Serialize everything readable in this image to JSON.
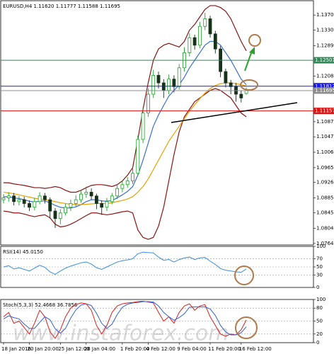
{
  "chart_data": [
    {
      "type": "candlestick",
      "title": "EURUSD,H4  1.11620 1.11777 1.11588 1.11695",
      "categories": [
        "18 Jan 2016",
        null,
        null,
        null,
        null,
        "20 Jan 20:00",
        null,
        null,
        null,
        null,
        null,
        "25 Jan 12:00",
        null,
        null,
        null,
        null,
        "28 Jan 04:00",
        null,
        null,
        null,
        null,
        null,
        null,
        "1 Feb 20:00",
        null,
        null,
        null,
        null,
        "4 Feb 12:00",
        null,
        null,
        null,
        null,
        null,
        "9 Feb 04:00",
        null,
        null,
        null,
        null,
        null,
        "11 Feb 20:00",
        null,
        null,
        null,
        null,
        null,
        "16 Feb 12:00",
        null
      ],
      "open": [
        1.088,
        1.0885,
        1.089,
        1.0875,
        1.088,
        1.087,
        1.086,
        1.0875,
        1.089,
        1.088,
        1.085,
        1.083,
        1.0845,
        1.086,
        1.087,
        1.088,
        1.0895,
        1.09,
        1.089,
        1.087,
        1.086,
        1.0875,
        1.089,
        1.091,
        1.092,
        1.093,
        1.095,
        1.104,
        1.111,
        1.116,
        1.121,
        1.119,
        1.117,
        1.12,
        1.118,
        1.123,
        1.127,
        1.131,
        1.129,
        1.134,
        1.136,
        1.132,
        1.128,
        1.122,
        1.119,
        1.118,
        1.116,
        1.1162
      ],
      "high": [
        1.0895,
        1.09,
        1.0898,
        1.089,
        1.0888,
        1.0878,
        1.0885,
        1.09,
        1.0898,
        1.0886,
        1.0858,
        1.0855,
        1.087,
        1.088,
        1.0892,
        1.0905,
        1.0915,
        1.091,
        1.0896,
        1.0878,
        1.0885,
        1.0898,
        1.0918,
        1.093,
        1.094,
        1.0965,
        1.105,
        1.1125,
        1.1175,
        1.1225,
        1.122,
        1.12,
        1.1212,
        1.121,
        1.124,
        1.1285,
        1.1322,
        1.1318,
        1.1352,
        1.1376,
        1.1368,
        1.1328,
        1.1288,
        1.1228,
        1.1198,
        1.119,
        1.117,
        1.11777
      ],
      "low": [
        1.087,
        1.0875,
        1.0865,
        1.0865,
        1.086,
        1.085,
        1.0852,
        1.0868,
        1.087,
        1.083,
        1.0805,
        1.0815,
        1.0838,
        1.085,
        1.0862,
        1.0872,
        1.0885,
        1.088,
        1.0855,
        1.084,
        1.085,
        1.0868,
        1.0882,
        1.09,
        1.0912,
        1.0922,
        1.0945,
        1.103,
        1.11,
        1.115,
        1.1175,
        1.115,
        1.116,
        1.1165,
        1.1172,
        1.122,
        1.126,
        1.1278,
        1.1282,
        1.133,
        1.131,
        1.1268,
        1.1205,
        1.1178,
        1.116,
        1.114,
        1.1138,
        1.11588
      ],
      "close": [
        1.0885,
        1.089,
        1.0875,
        1.088,
        1.087,
        1.086,
        1.0875,
        1.089,
        1.088,
        1.085,
        1.083,
        1.0845,
        1.086,
        1.087,
        1.088,
        1.0895,
        1.09,
        1.089,
        1.087,
        1.086,
        1.0875,
        1.089,
        1.091,
        1.092,
        1.093,
        1.095,
        1.104,
        1.111,
        1.116,
        1.121,
        1.119,
        1.117,
        1.12,
        1.118,
        1.123,
        1.127,
        1.131,
        1.129,
        1.134,
        1.136,
        1.132,
        1.128,
        1.122,
        1.119,
        1.118,
        1.116,
        1.115,
        1.11695
      ],
      "up_color": "#1f9e2a",
      "down_color": "#16331a",
      "overlays": [
        {
          "color": "#8b1414",
          "values": [
            1.0925,
            1.0925,
            1.0922,
            1.092,
            1.0918,
            1.0915,
            1.0912,
            1.0912,
            1.091,
            1.0912,
            1.0915,
            1.0912,
            1.0905,
            1.09,
            1.09,
            1.0905,
            1.0912,
            1.0918,
            1.092,
            1.092,
            1.0918,
            1.0915,
            1.092,
            1.093,
            1.0945,
            1.0965,
            1.104,
            1.112,
            1.119,
            1.125,
            1.128,
            1.129,
            1.1295,
            1.129,
            1.1285,
            1.13,
            1.133,
            1.1345,
            1.1365,
            1.1385,
            1.1395,
            1.1395,
            1.139,
            1.138,
            1.136,
            1.133,
            1.13,
            1.1275
          ]
        },
        {
          "color": "#8b1414",
          "values": [
            1.085,
            1.0848,
            1.0845,
            1.0845,
            1.0842,
            1.0838,
            1.0835,
            1.0838,
            1.084,
            1.0832,
            1.0815,
            1.0808,
            1.081,
            1.0815,
            1.0822,
            1.083,
            1.0838,
            1.0845,
            1.0845,
            1.0842,
            1.084,
            1.0842,
            1.0845,
            1.0848,
            1.085,
            1.0845,
            1.08,
            1.078,
            1.0775,
            1.078,
            1.081,
            1.086,
            1.093,
            1.1,
            1.106,
            1.11,
            1.112,
            1.114,
            1.115,
            1.116,
            1.117,
            1.1175,
            1.117,
            1.116,
            1.115,
            1.113,
            1.111,
            1.11
          ]
        },
        {
          "color": "#3b6ed8",
          "values": [
            1.0888,
            1.0888,
            1.0885,
            1.0883,
            1.088,
            1.0876,
            1.0874,
            1.0876,
            1.0877,
            1.0872,
            1.0865,
            1.086,
            1.0858,
            1.0858,
            1.0861,
            1.0867,
            1.0875,
            1.088,
            1.088,
            1.0877,
            1.0876,
            1.0878,
            1.0885,
            1.0893,
            1.0902,
            1.0915,
            1.0945,
            1.0985,
            1.103,
            1.1075,
            1.1105,
            1.113,
            1.1155,
            1.117,
            1.1185,
            1.1205,
            1.123,
            1.125,
            1.127,
            1.129,
            1.13,
            1.13,
            1.129,
            1.127,
            1.125,
            1.1225,
            1.12,
            1.1185
          ]
        },
        {
          "color": "#e8a200",
          "values": [
            1.09,
            1.0898,
            1.0896,
            1.0893,
            1.089,
            1.0887,
            1.0884,
            1.0882,
            1.088,
            1.0878,
            1.0875,
            1.0872,
            1.087,
            1.0868,
            1.0867,
            1.0867,
            1.0868,
            1.0869,
            1.087,
            1.087,
            1.087,
            1.0872,
            1.0875,
            1.0878,
            1.0882,
            1.0888,
            1.09,
            1.0915,
            1.0935,
            1.096,
            1.0985,
            1.101,
            1.1035,
            1.1055,
            1.1075,
            1.1095,
            1.1115,
            1.1132,
            1.1148,
            1.1163,
            1.1175,
            1.1183,
            1.1188,
            1.119,
            1.119,
            1.1188,
            1.1185,
            1.1182
          ]
        }
      ],
      "levels": [
        {
          "value": 1.12501,
          "label": "1.12501",
          "color": "#2e8b57"
        },
        {
          "value": 1.11812,
          "label": "1.11812",
          "color": "#1a1ae6"
        },
        {
          "value": 1.11695,
          "label": "1.11695",
          "color": "#8c8c8c"
        },
        {
          "value": 1.11157,
          "label": "1.11157",
          "color": "#e01010"
        }
      ],
      "ylim": [
        1.076,
        1.1408
      ],
      "yticks": [
        {
          "value": 1.137,
          "label": "1.13700"
        },
        {
          "value": 1.133,
          "label": "1.13300"
        },
        {
          "value": 1.1289,
          "label": "1.12890"
        },
        {
          "value": 1.1208,
          "label": "1.12080"
        },
        {
          "value": 1.1087,
          "label": "1.10870"
        },
        {
          "value": 1.1047,
          "label": "1.10470"
        },
        {
          "value": 1.1006,
          "label": "1.10060"
        },
        {
          "value": 1.0965,
          "label": "1.09650"
        },
        {
          "value": 1.0926,
          "label": "1.09260"
        },
        {
          "value": 1.0885,
          "label": "1.08850"
        },
        {
          "value": 1.0845,
          "label": "1.08450"
        },
        {
          "value": 1.0804,
          "label": "1.08040"
        },
        {
          "value": 1.0764,
          "label": "1.07640"
        }
      ]
    },
    {
      "type": "line",
      "title": "RSI(14) 45.0150",
      "series": [
        {
          "color": "#3c8de0",
          "values": [
            50,
            53,
            45,
            48,
            44,
            40,
            47,
            54,
            49,
            38,
            32,
            40,
            47,
            52,
            56,
            60,
            62,
            57,
            48,
            44,
            50,
            56,
            62,
            65,
            67,
            70,
            82,
            86,
            85,
            84,
            74,
            66,
            68,
            62,
            68,
            72,
            74,
            68,
            72,
            73,
            64,
            56,
            46,
            42,
            40,
            38,
            37,
            45.015
          ]
        }
      ],
      "ylim": [
        0,
        100
      ],
      "yticks": [
        100,
        70,
        50,
        30,
        0
      ]
    },
    {
      "type": "line",
      "title": "Stoch(5,3,3) 52.4668 36.7856",
      "series": [
        {
          "color": "#d62020",
          "values": [
            60,
            70,
            45,
            50,
            35,
            20,
            45,
            75,
            60,
            25,
            10,
            30,
            60,
            80,
            88,
            92,
            90,
            75,
            40,
            20,
            40,
            70,
            85,
            90,
            92,
            93,
            95,
            96,
            94,
            92,
            70,
            50,
            60,
            45,
            70,
            85,
            90,
            75,
            85,
            88,
            60,
            40,
            20,
            15,
            20,
            18,
            30,
            52.4668
          ]
        },
        {
          "color": "#3060d0",
          "values": [
            55,
            62,
            58,
            55,
            43,
            33,
            33,
            47,
            60,
            53,
            32,
            22,
            33,
            57,
            76,
            87,
            90,
            86,
            68,
            45,
            33,
            43,
            65,
            82,
            89,
            92,
            93,
            95,
            95,
            94,
            85,
            70,
            60,
            52,
            58,
            67,
            82,
            83,
            83,
            83,
            78,
            63,
            40,
            25,
            18,
            18,
            23,
            36.7856
          ]
        }
      ],
      "ylim": [
        0,
        100
      ],
      "yticks": [
        100,
        80,
        50,
        20,
        0
      ]
    }
  ],
  "watermark": "www.instaforex.com"
}
